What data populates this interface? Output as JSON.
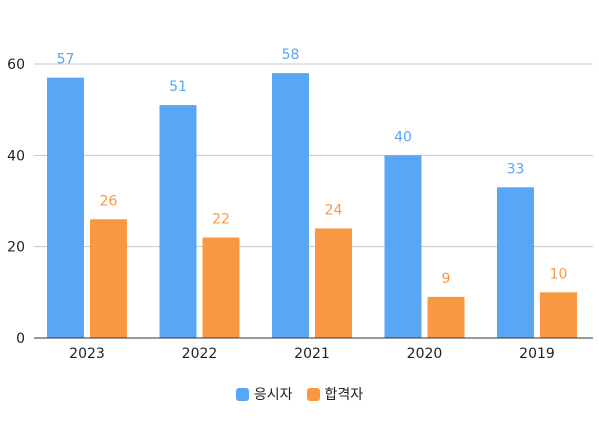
{
  "chart_data": {
    "type": "bar",
    "title": "",
    "xlabel": "",
    "ylabel": "",
    "categories": [
      "2023",
      "2022",
      "2021",
      "2020",
      "2019"
    ],
    "series": [
      {
        "name": "응시자",
        "values": [
          57,
          51,
          58,
          40,
          33
        ],
        "color": "#58a6f5"
      },
      {
        "name": "합격자",
        "values": [
          26,
          22,
          24,
          9,
          10
        ],
        "color": "#f99842"
      }
    ],
    "ylim": [
      0,
      60
    ],
    "yticks": [
      0,
      20,
      40,
      60
    ],
    "grid": true,
    "data_labels": true,
    "legend_position": "bottom"
  }
}
